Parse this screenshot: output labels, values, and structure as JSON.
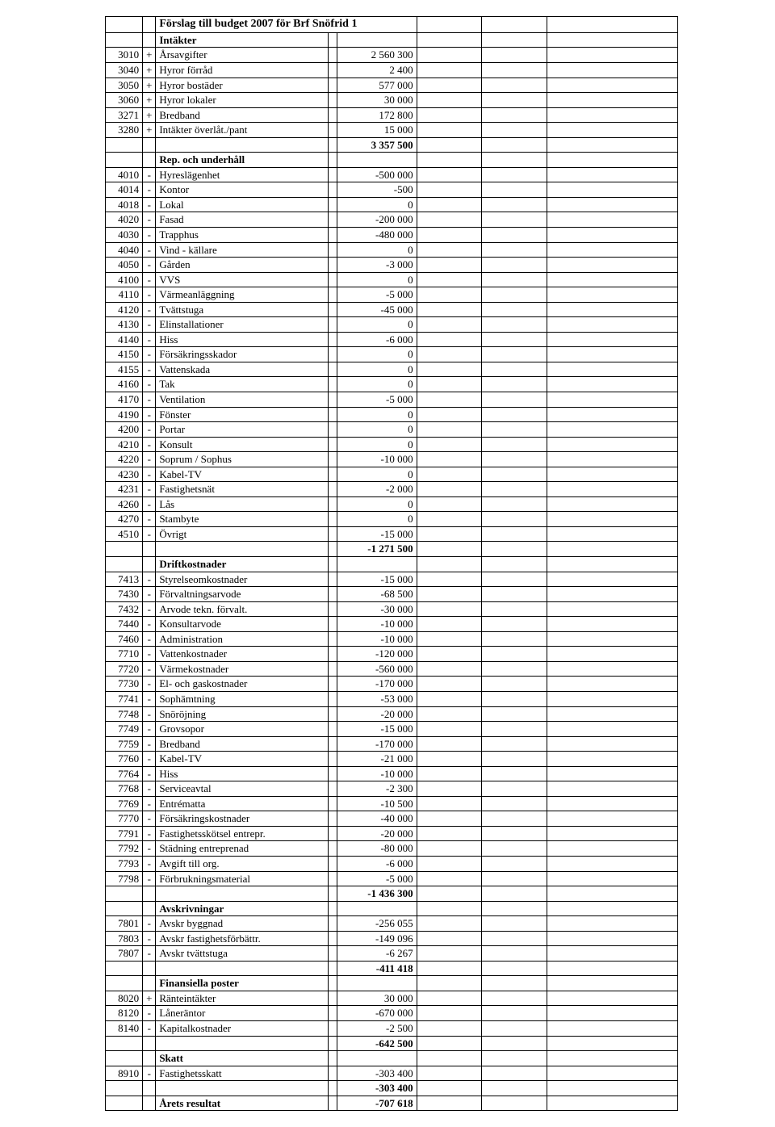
{
  "title": "Förslag till budget 2007 för Brf Snöfrid 1",
  "sections": [
    {
      "header": "Intäkter",
      "rows": [
        {
          "code": "3010",
          "sign": "+",
          "desc": "Årsavgifter",
          "amount": "2 560 300"
        },
        {
          "code": "3040",
          "sign": "+",
          "desc": "Hyror förråd",
          "amount": "2 400"
        },
        {
          "code": "3050",
          "sign": "+",
          "desc": "Hyror bostäder",
          "amount": "577 000"
        },
        {
          "code": "3060",
          "sign": "+",
          "desc": "Hyror lokaler",
          "amount": "30 000"
        },
        {
          "code": "3271",
          "sign": "+",
          "desc": "Bredband",
          "amount": "172 800"
        },
        {
          "code": "3280",
          "sign": "+",
          "desc": "Intäkter överlåt./pant",
          "amount": "15 000"
        }
      ],
      "subtotal": "3 357 500"
    },
    {
      "header": "Rep. och underhåll",
      "rows": [
        {
          "code": "4010",
          "sign": "-",
          "desc": "Hyreslägenhet",
          "amount": "-500 000"
        },
        {
          "code": "4014",
          "sign": "-",
          "desc": "Kontor",
          "amount": "-500"
        },
        {
          "code": "4018",
          "sign": "-",
          "desc": "Lokal",
          "amount": "0"
        },
        {
          "code": "4020",
          "sign": "-",
          "desc": "Fasad",
          "amount": "-200 000"
        },
        {
          "code": "4030",
          "sign": "-",
          "desc": "Trapphus",
          "amount": "-480 000"
        },
        {
          "code": "4040",
          "sign": "-",
          "desc": "Vind - källare",
          "amount": "0"
        },
        {
          "code": "4050",
          "sign": "-",
          "desc": "Gården",
          "amount": "-3 000"
        },
        {
          "code": "4100",
          "sign": "-",
          "desc": "VVS",
          "amount": "0"
        },
        {
          "code": "4110",
          "sign": "-",
          "desc": "Värmeanläggning",
          "amount": "-5 000"
        },
        {
          "code": "4120",
          "sign": "-",
          "desc": "Tvättstuga",
          "amount": "-45 000"
        },
        {
          "code": "4130",
          "sign": "-",
          "desc": "Elinstallationer",
          "amount": "0"
        },
        {
          "code": "4140",
          "sign": "-",
          "desc": "Hiss",
          "amount": "-6 000"
        },
        {
          "code": "4150",
          "sign": "-",
          "desc": "Försäkringsskador",
          "amount": "0"
        },
        {
          "code": "4155",
          "sign": "-",
          "desc": "Vattenskada",
          "amount": "0"
        },
        {
          "code": "4160",
          "sign": "-",
          "desc": "Tak",
          "amount": "0"
        },
        {
          "code": "4170",
          "sign": "-",
          "desc": "Ventilation",
          "amount": "-5 000"
        },
        {
          "code": "4190",
          "sign": "-",
          "desc": "Fönster",
          "amount": "0"
        },
        {
          "code": "4200",
          "sign": "-",
          "desc": "Portar",
          "amount": "0"
        },
        {
          "code": "4210",
          "sign": "-",
          "desc": "Konsult",
          "amount": "0"
        },
        {
          "code": "4220",
          "sign": "-",
          "desc": "Soprum / Sophus",
          "amount": "-10 000"
        },
        {
          "code": "4230",
          "sign": "-",
          "desc": "Kabel-TV",
          "amount": "0"
        },
        {
          "code": "4231",
          "sign": "-",
          "desc": "Fastighetsnät",
          "amount": "-2 000"
        },
        {
          "code": "4260",
          "sign": "-",
          "desc": "Lås",
          "amount": "0"
        },
        {
          "code": "4270",
          "sign": "-",
          "desc": "Stambyte",
          "amount": "0"
        },
        {
          "code": "4510",
          "sign": "-",
          "desc": "Övrigt",
          "amount": "-15 000"
        }
      ],
      "subtotal": "-1 271 500"
    },
    {
      "header": "Driftkostnader",
      "rows": [
        {
          "code": "7413",
          "sign": "-",
          "desc": "Styrelseomkostnader",
          "amount": "-15 000"
        },
        {
          "code": "7430",
          "sign": "-",
          "desc": "Förvaltningsarvode",
          "amount": "-68 500"
        },
        {
          "code": "7432",
          "sign": "-",
          "desc": "Arvode tekn. förvalt.",
          "amount": "-30 000"
        },
        {
          "code": "7440",
          "sign": "-",
          "desc": "Konsultarvode",
          "amount": "-10 000"
        },
        {
          "code": "7460",
          "sign": "-",
          "desc": "Administration",
          "amount": "-10 000"
        },
        {
          "code": "7710",
          "sign": "-",
          "desc": "Vattenkostnader",
          "amount": "-120 000"
        },
        {
          "code": "7720",
          "sign": "-",
          "desc": "Värmekostnader",
          "amount": "-560 000"
        },
        {
          "code": "7730",
          "sign": "-",
          "desc": "El- och gaskostnader",
          "amount": "-170 000"
        },
        {
          "code": "7741",
          "sign": "-",
          "desc": "Sophämtning",
          "amount": "-53 000"
        },
        {
          "code": "7748",
          "sign": "-",
          "desc": "Snöröjning",
          "amount": "-20 000"
        },
        {
          "code": "7749",
          "sign": "-",
          "desc": "Grovsopor",
          "amount": "-15 000"
        },
        {
          "code": "7759",
          "sign": "-",
          "desc": "Bredband",
          "amount": "-170 000"
        },
        {
          "code": "7760",
          "sign": "-",
          "desc": "Kabel-TV",
          "amount": "-21 000"
        },
        {
          "code": "7764",
          "sign": "-",
          "desc": "Hiss",
          "amount": "-10 000"
        },
        {
          "code": "7768",
          "sign": "-",
          "desc": "Serviceavtal",
          "amount": "-2 300"
        },
        {
          "code": "7769",
          "sign": "-",
          "desc": "Entrématta",
          "amount": "-10 500"
        },
        {
          "code": "7770",
          "sign": "-",
          "desc": "Försäkringskostnader",
          "amount": "-40 000"
        },
        {
          "code": "7791",
          "sign": "-",
          "desc": "Fastighetsskötsel entrepr.",
          "amount": "-20 000"
        },
        {
          "code": "7792",
          "sign": "-",
          "desc": "Städning entreprenad",
          "amount": "-80 000"
        },
        {
          "code": "7793",
          "sign": "-",
          "desc": "Avgift till org.",
          "amount": "-6 000"
        },
        {
          "code": "7798",
          "sign": "-",
          "desc": "Förbrukningsmaterial",
          "amount": "-5 000"
        }
      ],
      "subtotal": "-1 436 300"
    },
    {
      "header": "Avskrivningar",
      "rows": [
        {
          "code": "7801",
          "sign": "-",
          "desc": "Avskr byggnad",
          "amount": "-256 055"
        },
        {
          "code": "7803",
          "sign": "-",
          "desc": "Avskr fastighetsförbättr.",
          "amount": "-149 096"
        },
        {
          "code": "7807",
          "sign": "-",
          "desc": "Avskr tvättstuga",
          "amount": "-6 267"
        }
      ],
      "subtotal": "-411 418"
    },
    {
      "header": "Finansiella poster",
      "rows": [
        {
          "code": "8020",
          "sign": "+",
          "desc": "Ränteintäkter",
          "amount": "30 000"
        },
        {
          "code": "8120",
          "sign": "-",
          "desc": "Låneräntor",
          "amount": "-670 000"
        },
        {
          "code": "8140",
          "sign": "-",
          "desc": "Kapitalkostnader",
          "amount": "-2 500"
        }
      ],
      "subtotal": "-642 500"
    },
    {
      "header": "Skatt",
      "rows": [
        {
          "code": "8910",
          "sign": "-",
          "desc": "Fastighetsskatt",
          "amount": "-303 400"
        }
      ],
      "subtotal": "-303 400"
    }
  ],
  "result_label": "Årets resultat",
  "result_value": "-707 618"
}
